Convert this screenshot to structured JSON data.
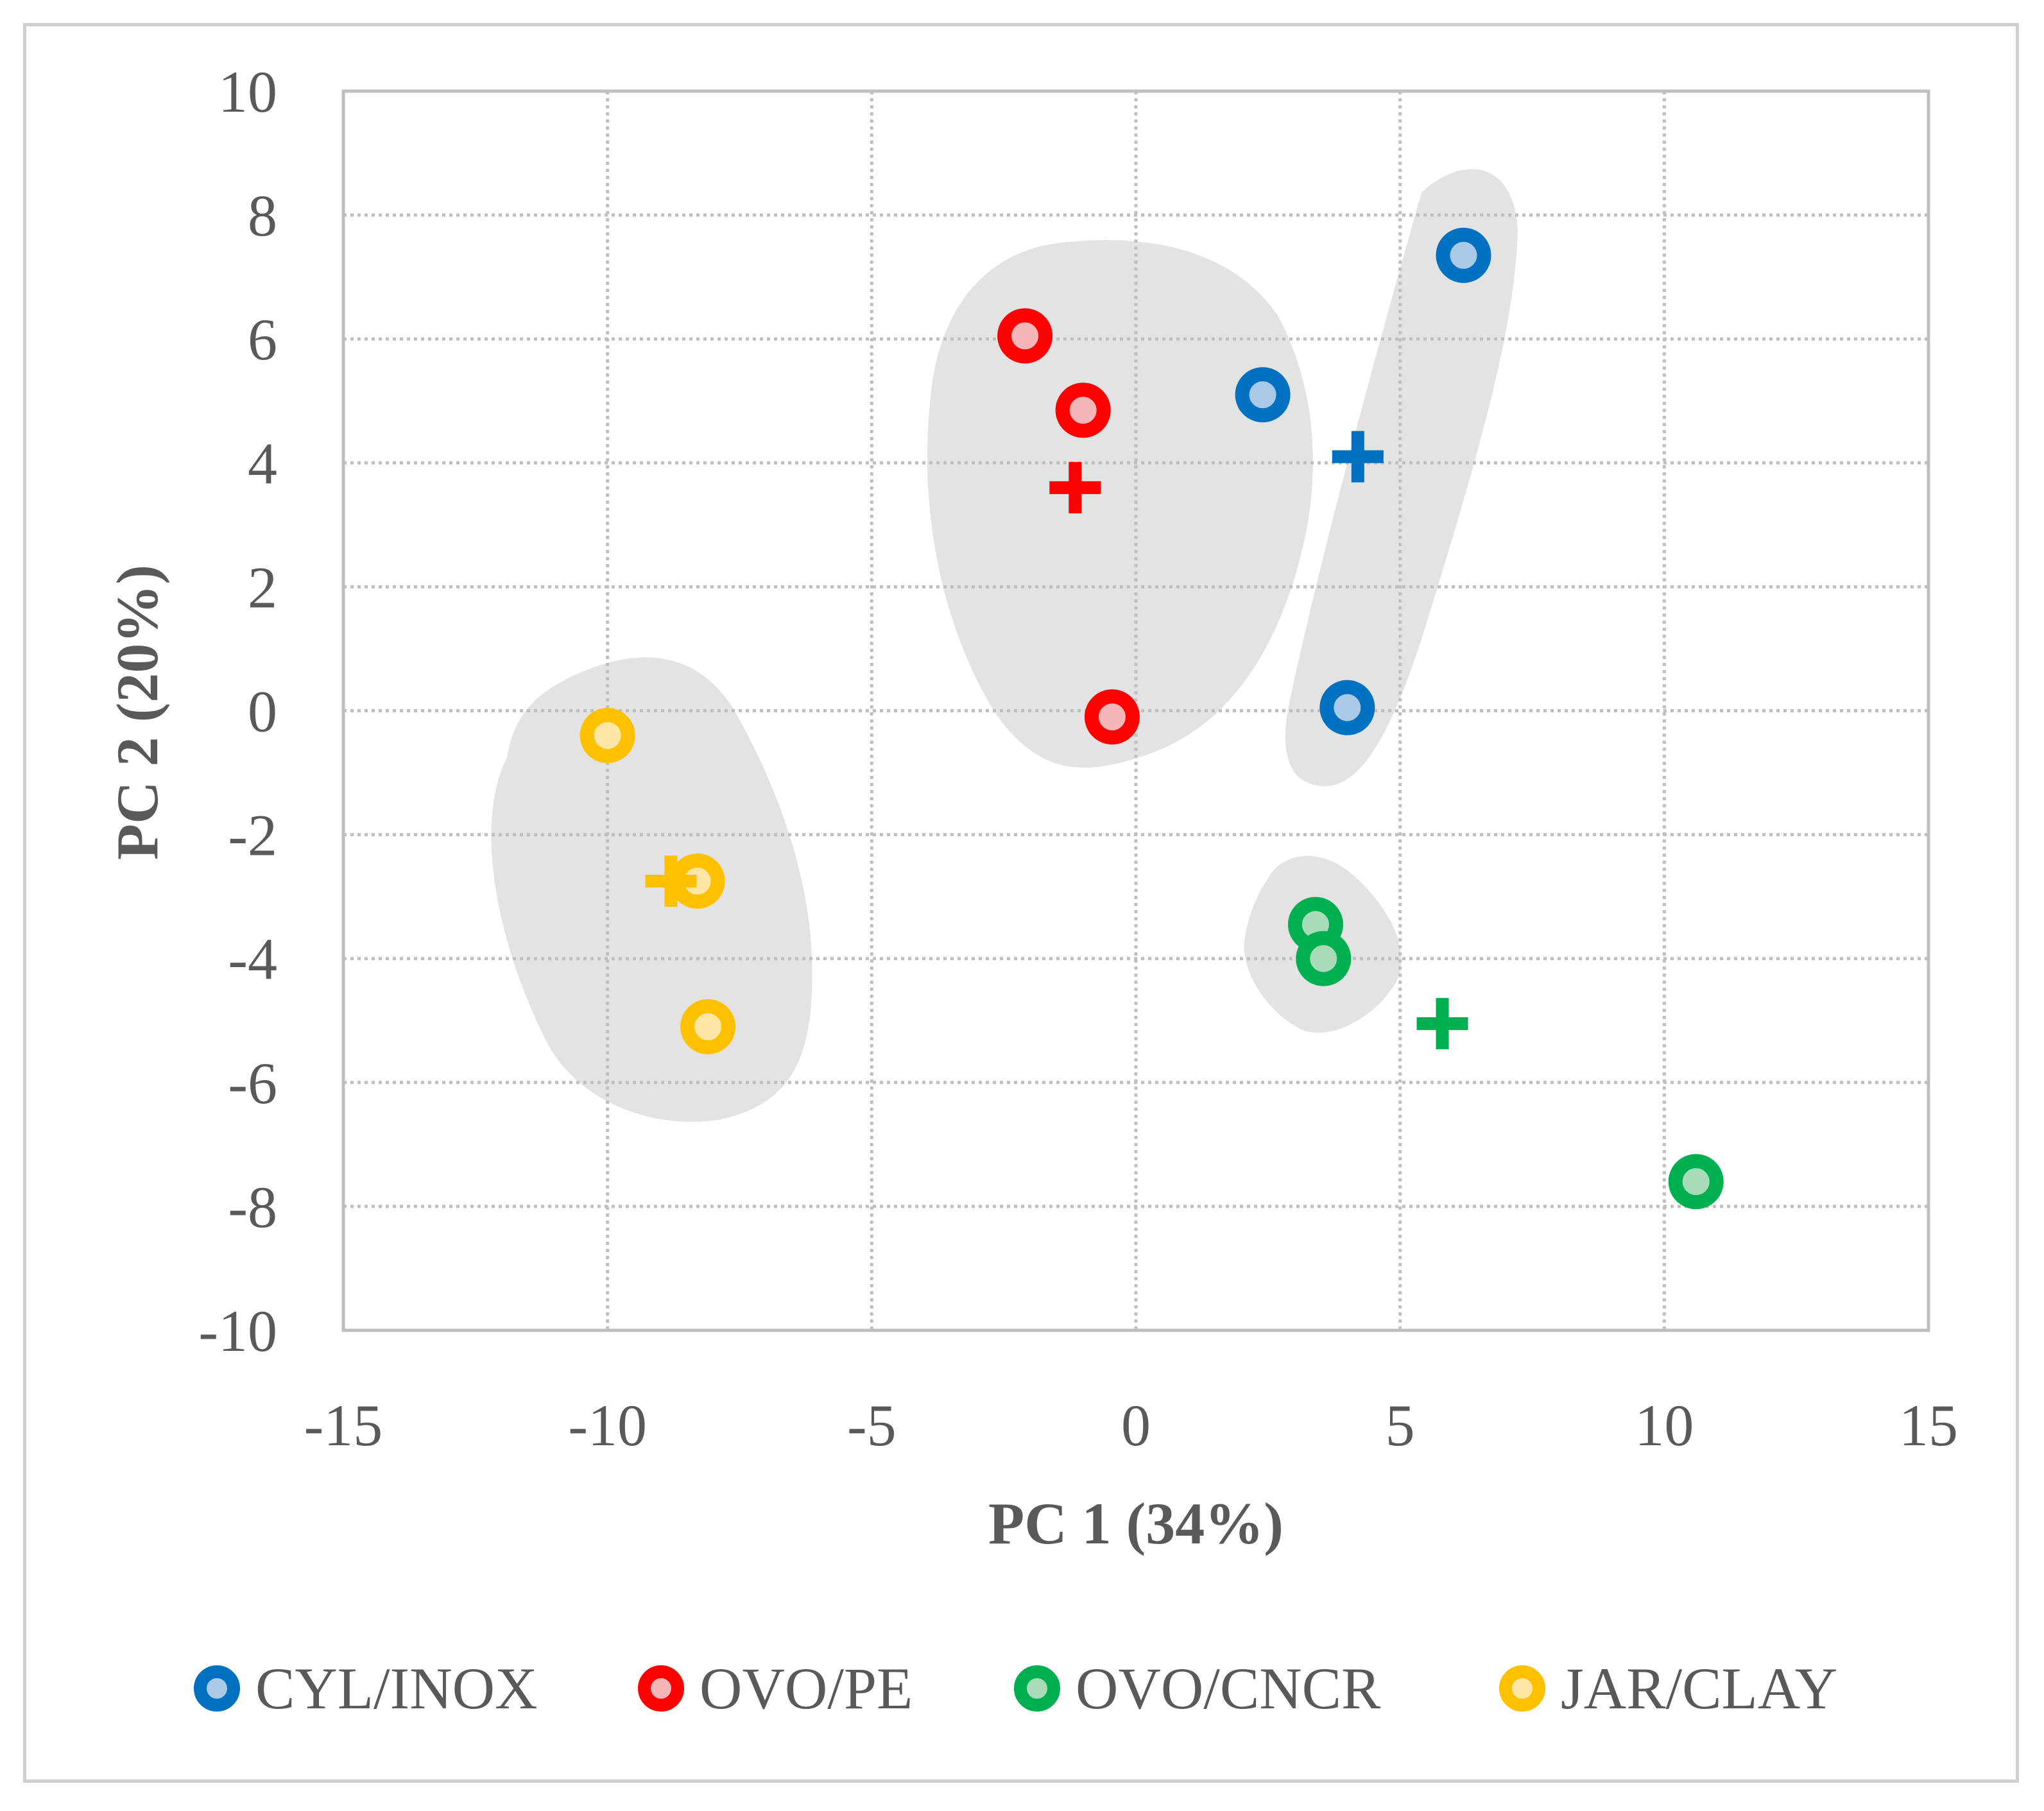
{
  "chart_data": {
    "type": "scatter",
    "title": "",
    "xlabel": "PC 1 (34%)",
    "ylabel": "PC 2 (20%)",
    "xlim": [
      -15,
      15
    ],
    "ylim": [
      -10,
      10
    ],
    "xticks": [
      -15,
      -10,
      -5,
      0,
      5,
      10,
      15
    ],
    "yticks": [
      -10,
      -8,
      -6,
      -4,
      -2,
      0,
      2,
      4,
      6,
      8,
      10
    ],
    "xtick_labels": [
      "-15",
      "-10",
      "-5",
      "0",
      "5",
      "10",
      "15"
    ],
    "ytick_labels": [
      "-10",
      "-8",
      "-6",
      "-4",
      "-2",
      "0",
      "2",
      "4",
      "6",
      "8",
      "10"
    ],
    "grid": true,
    "legend_position": "bottom",
    "series": [
      {
        "name": "CYL/INOX",
        "color": "#0070c0",
        "fill": "#a9c9e6",
        "points": [
          [
            6.2,
            7.35
          ],
          [
            2.4,
            5.1
          ],
          [
            4.0,
            0.05
          ]
        ],
        "centroid": [
          4.2,
          4.1
        ]
      },
      {
        "name": "OVO/PE",
        "color": "#ff0000",
        "fill": "#f4b6b6",
        "points": [
          [
            -2.1,
            6.05
          ],
          [
            -1.0,
            4.85
          ],
          [
            -0.45,
            -0.1
          ]
        ],
        "centroid": [
          -1.15,
          3.6
        ]
      },
      {
        "name": "OVO/CNCR",
        "color": "#00b050",
        "fill": "#a8dcb8",
        "points": [
          [
            3.4,
            -3.45
          ],
          [
            3.55,
            -4.0
          ],
          [
            10.6,
            -7.6
          ]
        ],
        "centroid": [
          5.8,
          -5.05
        ]
      },
      {
        "name": "JAR/CLAY",
        "color": "#ffc000",
        "fill": "#fde6a6",
        "points": [
          [
            -10.0,
            -0.4
          ],
          [
            -8.3,
            -2.75
          ],
          [
            -8.1,
            -5.1
          ]
        ],
        "centroid": [
          -8.8,
          -2.75
        ]
      }
    ]
  }
}
